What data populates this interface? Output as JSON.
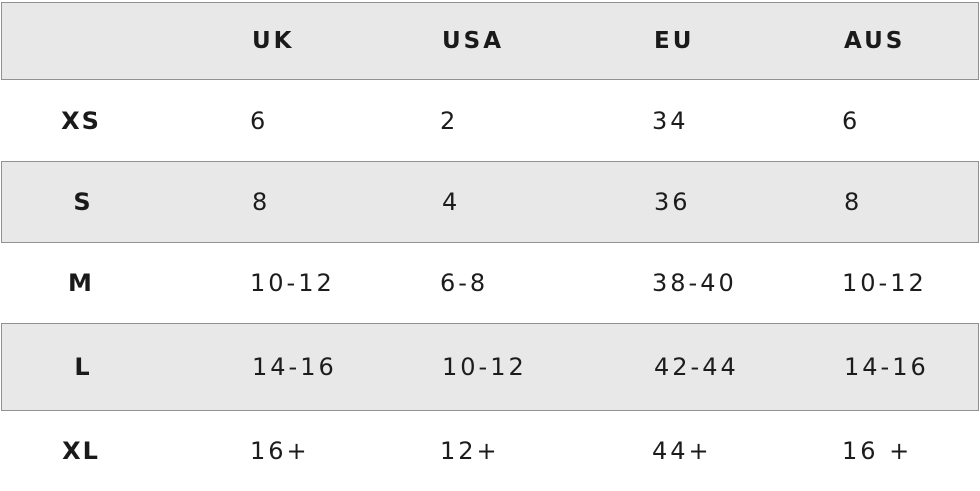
{
  "chart_data": {
    "type": "table",
    "columns": [
      "",
      "UK",
      "USA",
      "EU",
      "AUS"
    ],
    "rows": [
      [
        "XS",
        "6",
        "2",
        "34",
        "6"
      ],
      [
        "S",
        "8",
        "4",
        "36",
        "8"
      ],
      [
        "M",
        "10-12",
        "6-8",
        "38-40",
        "10-12"
      ],
      [
        "L",
        "14-16",
        "10-12",
        "42-44",
        "14-16"
      ],
      [
        "XL",
        "16+",
        "12+",
        "44+",
        "16 +"
      ]
    ]
  },
  "colors": {
    "band_fill": "#e8e8e8",
    "band_border": "#919191",
    "text": "#1a1a1a",
    "background": "#ffffff"
  }
}
